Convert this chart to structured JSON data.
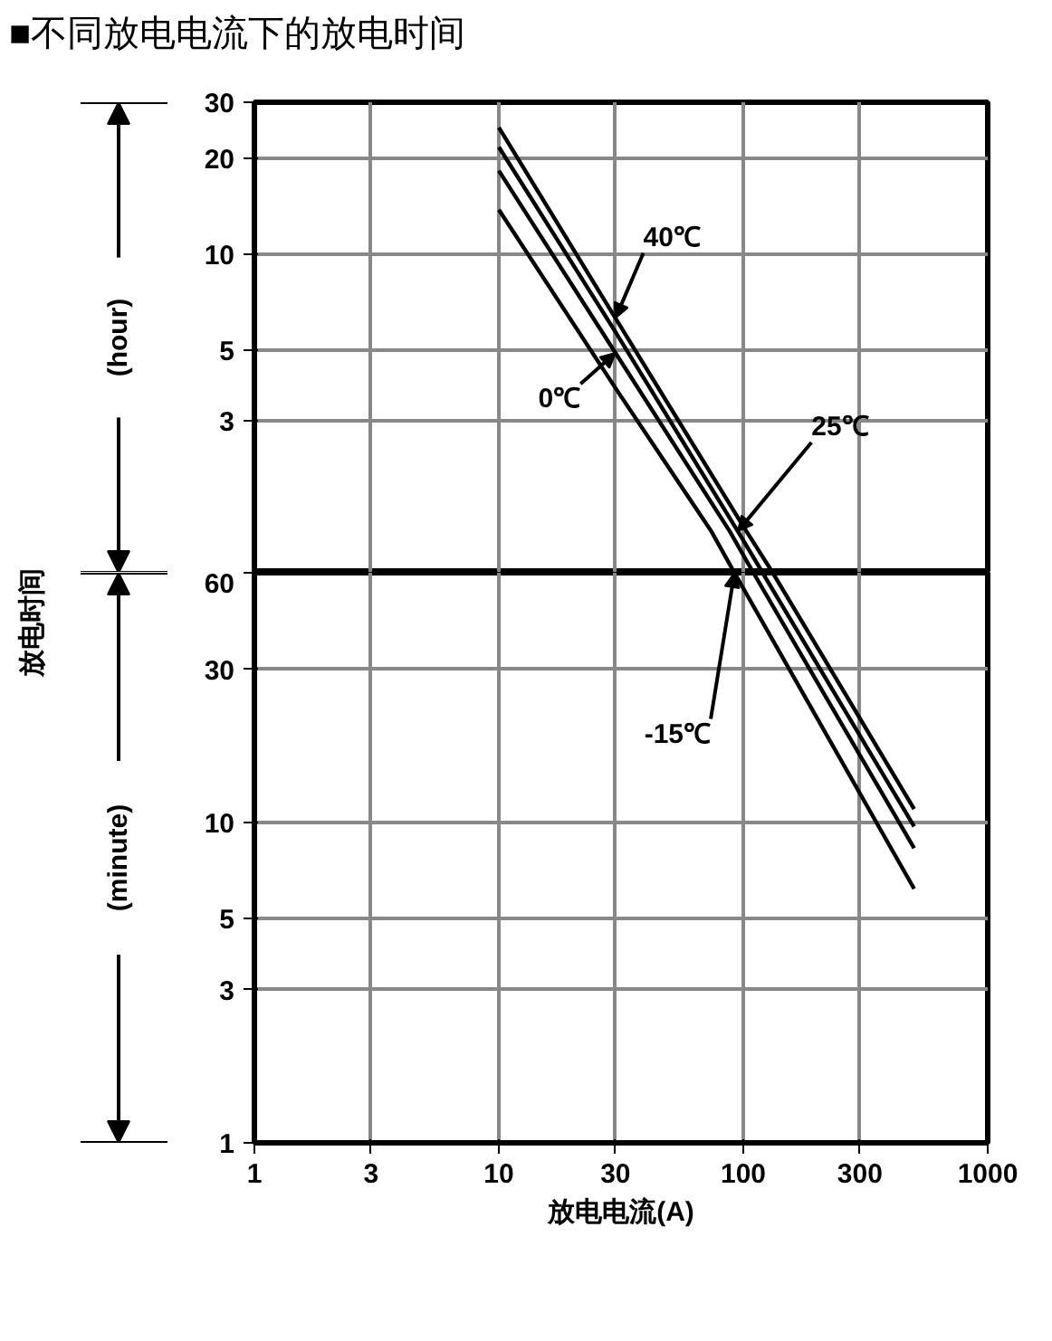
{
  "chart_data": [
    {
      "type": "line",
      "title": "■不同放电电流下的放电时间",
      "annotations": [
        "(hour)"
      ],
      "log": "xy",
      "grid": true,
      "marker": "none",
      "line_style": "solid",
      "tick_labels": "y",
      "xlim": [
        1,
        1000
      ],
      "xticks": [
        1,
        3,
        10,
        30,
        100,
        300,
        1000
      ],
      "ylim": [
        1,
        30
      ],
      "yticks": [
        3,
        5,
        10,
        20,
        30
      ],
      "series": [
        {
          "name": "40℃",
          "color": "#000000",
          "x": [
            10,
            30,
            100,
            132
          ],
          "values": [
            25,
            6.3,
            1.4,
            1
          ]
        },
        {
          "name": "25℃",
          "color": "#000000",
          "x": [
            10,
            30,
            95,
            120
          ],
          "values": [
            21.7,
            5.7,
            1.35,
            1
          ]
        },
        {
          "name": "0℃",
          "color": "#000000",
          "x": [
            10,
            30,
            88,
            110
          ],
          "values": [
            18.3,
            4.9,
            1.35,
            1
          ]
        },
        {
          "color": "#000000",
          "x": [
            10,
            30,
            74,
            92
          ],
          "values": [
            13.8,
            3.8,
            1.35,
            1
          ]
        }
      ]
    },
    {
      "type": "line",
      "xlabel": "放电电流(A)",
      "ylabel": "放电时间",
      "annotations": [
        "(minute)"
      ],
      "log": "xy",
      "grid": true,
      "marker": "none",
      "line_style": "solid",
      "xlim": [
        1,
        1000
      ],
      "xticks": [
        1,
        3,
        10,
        30,
        100,
        300,
        1000
      ],
      "ylim": [
        1,
        60
      ],
      "yticks": [
        1,
        3,
        5,
        10,
        30,
        60
      ],
      "series": [
        {
          "color": "#000000",
          "x": [
            132,
            500
          ],
          "values": [
            60,
            11
          ]
        },
        {
          "color": "#000000",
          "x": [
            120,
            500
          ],
          "values": [
            60,
            9.7
          ]
        },
        {
          "color": "#000000",
          "x": [
            110,
            500
          ],
          "values": [
            60,
            8.3
          ]
        },
        {
          "name": "-15℃",
          "color": "#000000",
          "x": [
            92,
            500
          ],
          "values": [
            60,
            6.2
          ]
        }
      ]
    }
  ]
}
